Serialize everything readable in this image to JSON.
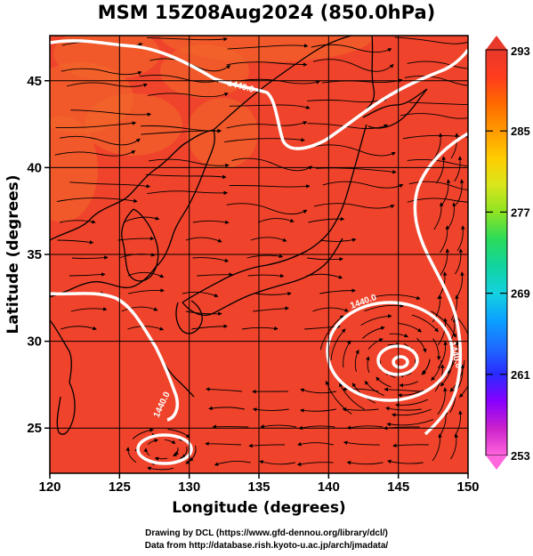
{
  "title": "MSM 15Z08Aug2024 (850.0hPa)",
  "x_axis": {
    "label": "Longitude (degrees)",
    "ticks": [
      "120",
      "125",
      "130",
      "135",
      "140",
      "145",
      "150"
    ],
    "range": [
      120,
      150
    ]
  },
  "y_axis": {
    "label": "Latitude  (degrees)",
    "ticks": [
      "25",
      "30",
      "35",
      "40",
      "45"
    ],
    "range": [
      22.4,
      47.6
    ]
  },
  "colorbar": {
    "ticks": [
      "293",
      "285",
      "277",
      "269",
      "261",
      "253"
    ],
    "range": [
      253,
      293
    ],
    "colors": [
      "#ff66dd",
      "#cc22cc",
      "#8800ff",
      "#2a2aff",
      "#1e6cff",
      "#0aa0ff",
      "#14d2e0",
      "#11d4a0",
      "#2bdb5a",
      "#8ee323",
      "#d8e61c",
      "#ffcc00",
      "#ff9a00",
      "#ff6a00",
      "#ff3c1e",
      "#e8392b"
    ]
  },
  "contours": {
    "labels": [
      "1440.0",
      "1440.0",
      "1440.0",
      "1440.0"
    ],
    "color": "#ffffff"
  },
  "field": {
    "main_color": "#f0432b",
    "warm_patch_color": "#f26a2a"
  },
  "credits": {
    "line1": "Drawing by DCL (https://www.gfd-dennou.org/library/dcl/)",
    "line2": "Data from http://database.rish.kyoto-u.ac.jp/arch/jmadata/"
  },
  "icons": {
    "colorbar_top": "triangle-up-icon",
    "colorbar_bottom": "triangle-down-icon",
    "streamline_arrow": "arrowhead-icon"
  }
}
